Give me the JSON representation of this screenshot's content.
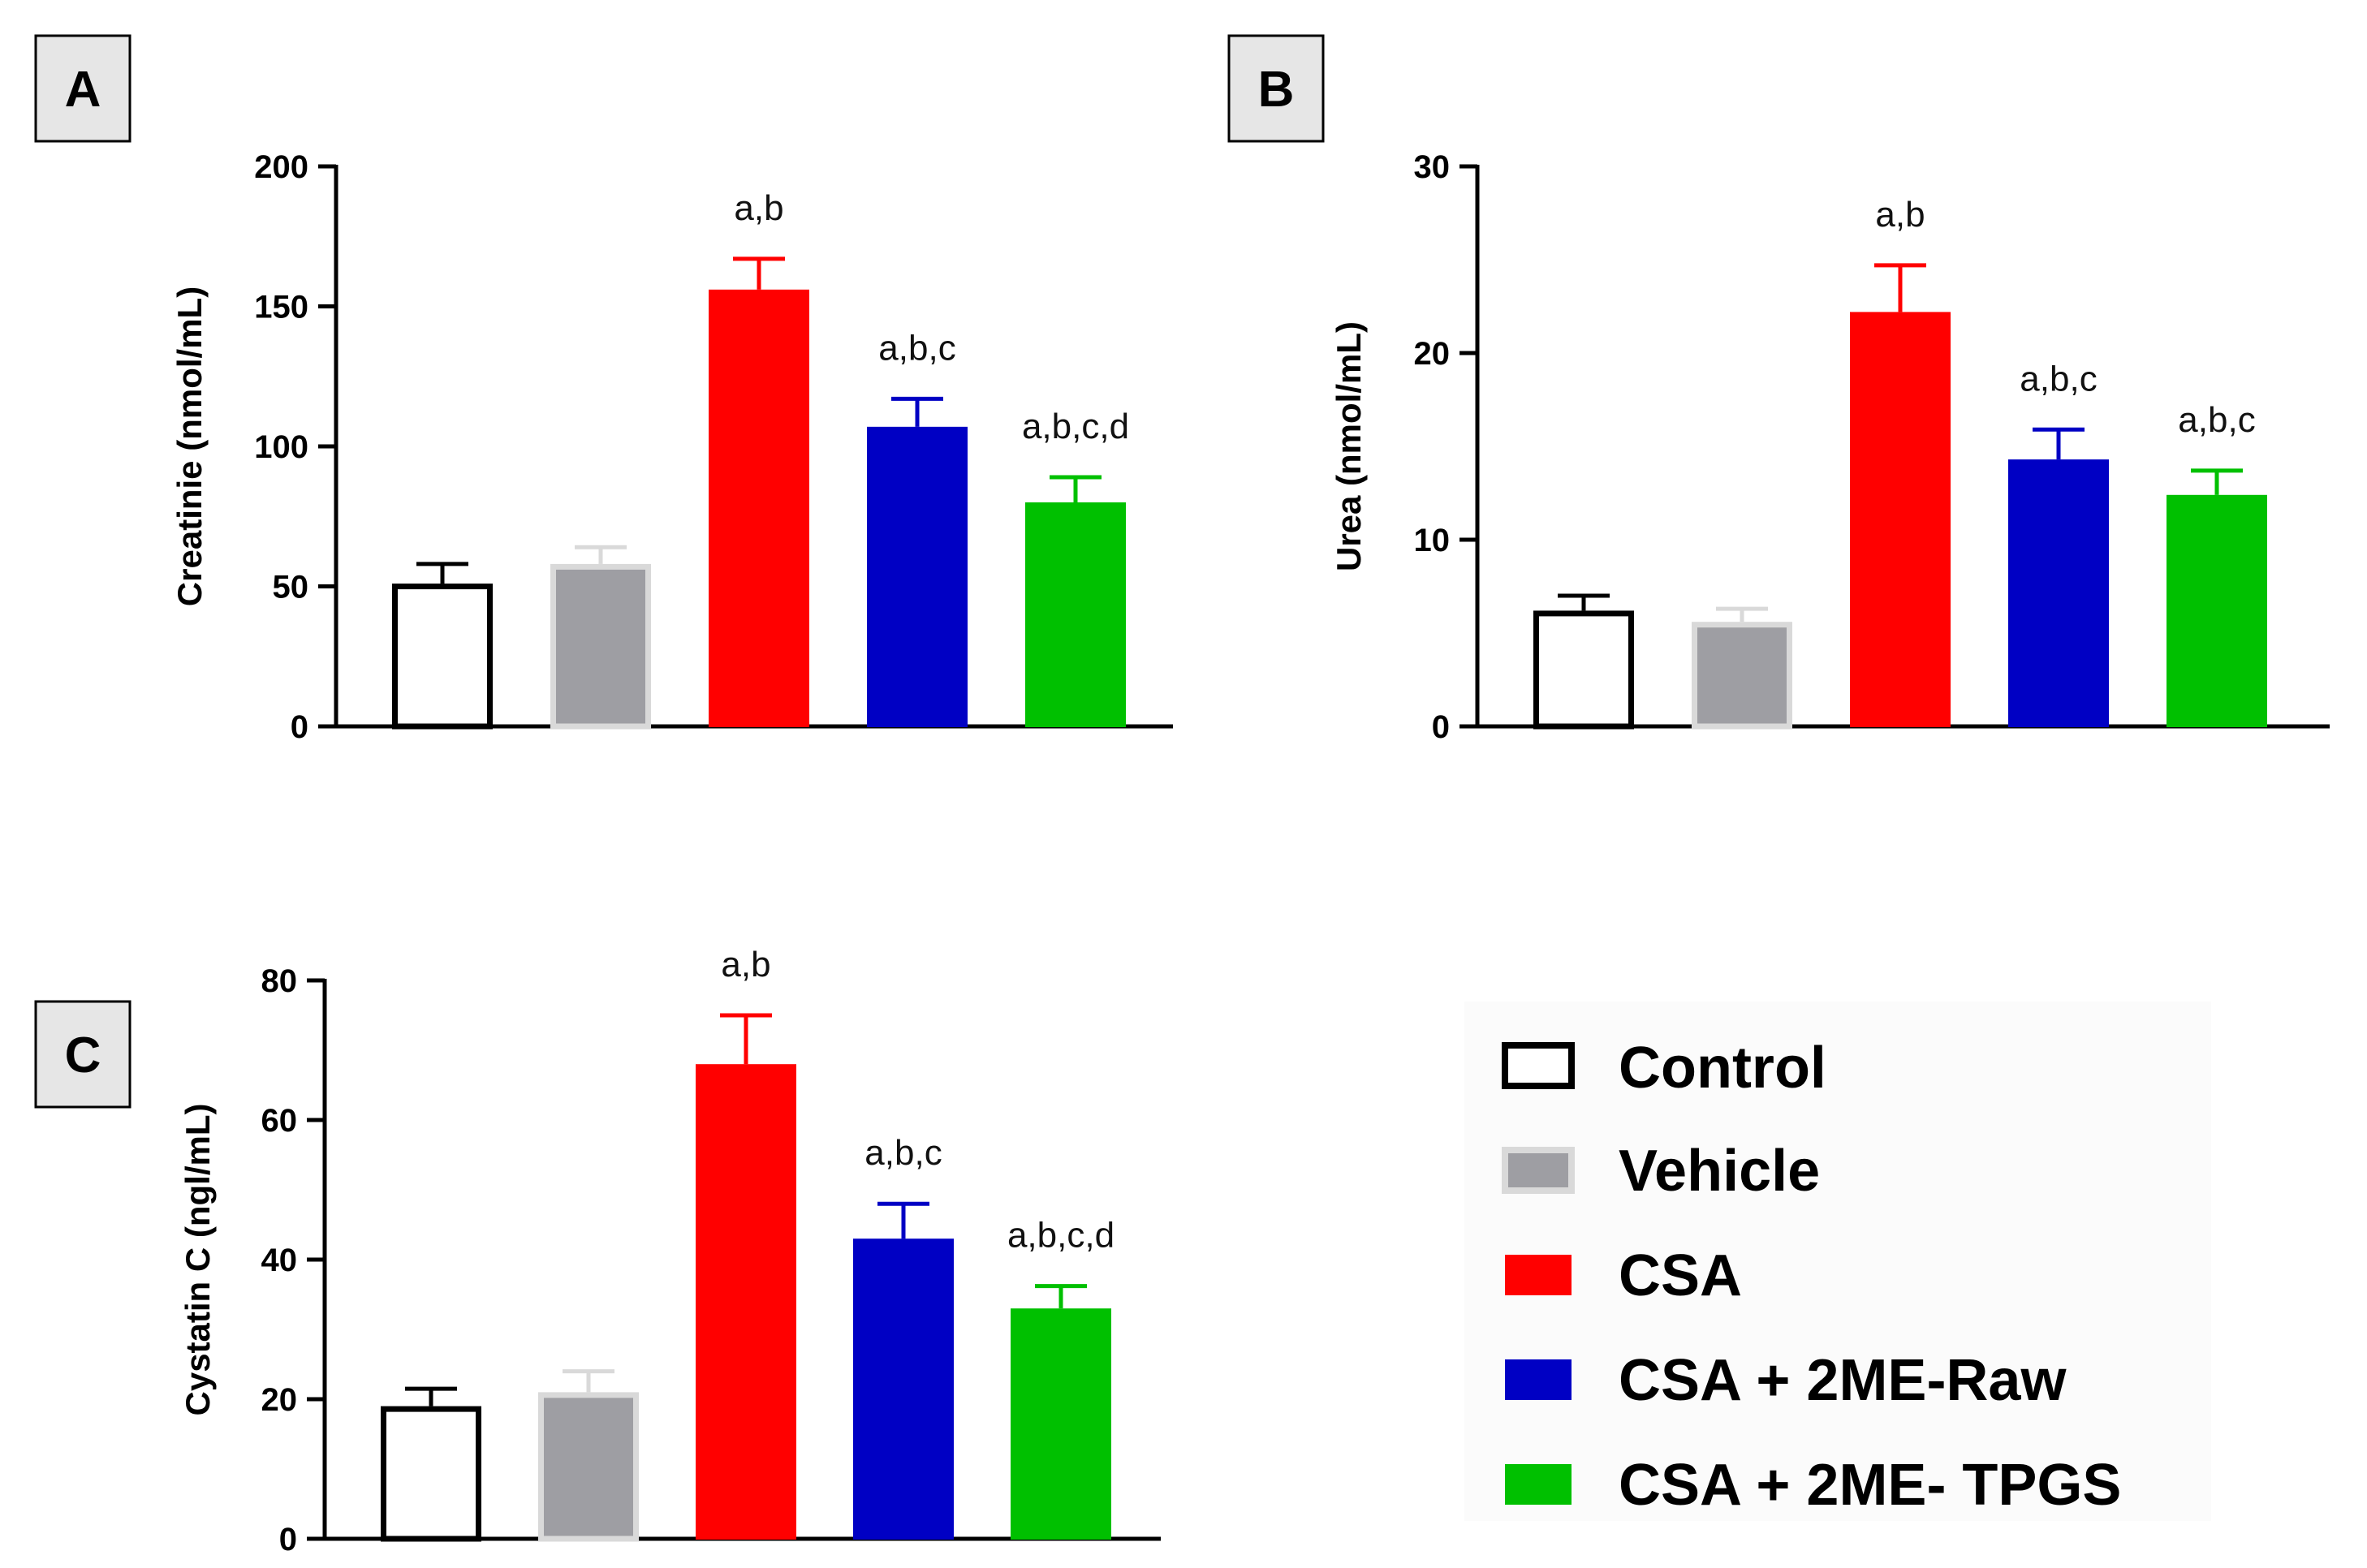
{
  "chart_data": [
    {
      "type": "bar",
      "panel": "A",
      "ylabel": "Creatinie (nmol/mL)",
      "ylim": [
        0,
        200
      ],
      "yticks": [
        0,
        50,
        100,
        150,
        200
      ],
      "categories": [
        "Control",
        "Vehicle",
        "CSA",
        "CSA + 2ME-Raw",
        "CSA + 2ME- TPGS"
      ],
      "values": [
        51,
        58,
        156,
        107,
        80
      ],
      "errors": [
        7,
        6,
        11,
        10,
        9
      ],
      "annotations": [
        "",
        "",
        "a,b",
        "a,b,c",
        "a,b,c,d"
      ]
    },
    {
      "type": "bar",
      "panel": "B",
      "ylabel": "Urea (nmol/mL)",
      "ylim": [
        0,
        30
      ],
      "yticks": [
        0,
        10,
        20,
        30
      ],
      "categories": [
        "Control",
        "Vehicle",
        "CSA",
        "CSA + 2ME-Raw",
        "CSA + 2ME- TPGS"
      ],
      "values": [
        6.2,
        5.6,
        22.2,
        14.3,
        12.4
      ],
      "errors": [
        0.8,
        0.7,
        2.5,
        1.6,
        1.3
      ],
      "annotations": [
        "",
        "",
        "a,b",
        "a,b,c",
        "a,b,c"
      ]
    },
    {
      "type": "bar",
      "panel": "C",
      "ylabel": "Cystatin C (ngl/mL)",
      "ylim": [
        0,
        80
      ],
      "yticks": [
        0,
        20,
        40,
        60,
        80
      ],
      "categories": [
        "Control",
        "Vehicle",
        "CSA",
        "CSA + 2ME-Raw",
        "CSA + 2ME- TPGS"
      ],
      "values": [
        19,
        21,
        68,
        43,
        33
      ],
      "errors": [
        2.5,
        3,
        7,
        5,
        3.2
      ],
      "annotations": [
        "",
        "",
        "a,b",
        "a,b,c",
        "a,b,c,d"
      ]
    }
  ],
  "legend": [
    {
      "label": "Control",
      "fill": "#ffffff",
      "stroke": "#000000"
    },
    {
      "label": "Vehicle",
      "fill": "#9e9ea3",
      "stroke": "#d9d9d9"
    },
    {
      "label": "CSA",
      "fill": "#ff0000",
      "stroke": "#ff0000"
    },
    {
      "label": "CSA + 2ME-Raw",
      "fill": "#0000c4",
      "stroke": "#0000c4"
    },
    {
      "label": "CSA + 2ME- TPGS",
      "fill": "#00c000",
      "stroke": "#00c000"
    }
  ],
  "colors": {
    "bar_fills": [
      "#ffffff",
      "#9e9ea3",
      "#ff0000",
      "#0000c4",
      "#00c000"
    ],
    "bar_strokes": [
      "#000000",
      "#d9d9d9",
      "#ff0000",
      "#0000c4",
      "#00c000"
    ],
    "error_colors": [
      "#000000",
      "#d9d9d9",
      "#ff0000",
      "#0000c4",
      "#00c000"
    ]
  }
}
